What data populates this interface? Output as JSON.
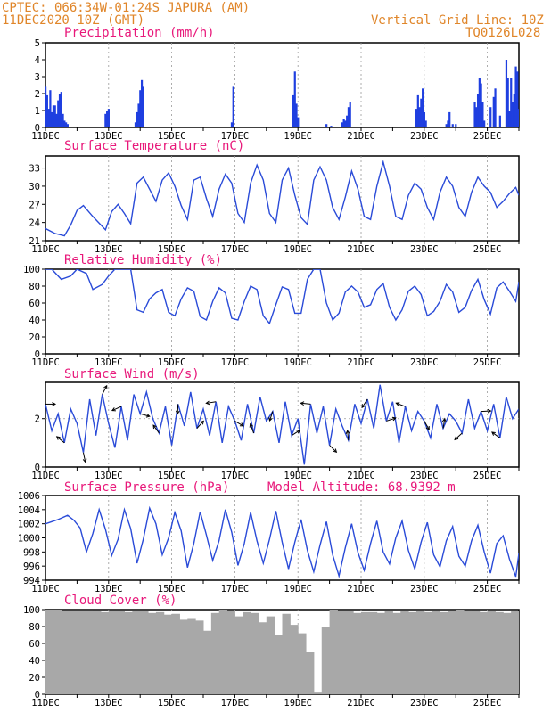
{
  "header": {
    "station": "CPTEC:   066:34W-01:24S  JAPURA (AM)",
    "date": "11DEC2020 10Z (GMT)",
    "grid_note": "Vertical Grid Line: 10Z",
    "code": "TQ0126L028"
  },
  "colors": {
    "line": "#2a4bd8",
    "bar": "#1f3fe0",
    "cloud": "#a8a8a8",
    "title": "#e8187a",
    "header": "#e0862a"
  },
  "x_tick_labels": [
    "11DEC",
    "13DEC",
    "15DEC",
    "17DEC",
    "19DEC",
    "21DEC",
    "23DEC",
    "25DEC"
  ],
  "panels": {
    "precip": {
      "title": "Precipitation (mm/h)",
      "yticks": [
        "0",
        "1",
        "2",
        "3",
        "4",
        "5"
      ]
    },
    "temp": {
      "title": "Surface Temperature (nC)",
      "yticks": [
        "21",
        "24",
        "27",
        "30",
        "33"
      ]
    },
    "rh": {
      "title": "Relative Humidity (%)",
      "yticks": [
        "0",
        "20",
        "40",
        "60",
        "80",
        "100"
      ]
    },
    "wind": {
      "title": "Surface Wind (m/s)",
      "yticks": [
        "0",
        "2"
      ]
    },
    "press": {
      "title": "Surface Pressure (hPa)",
      "extra": "Model Altitude: 68.9392 m",
      "yticks": [
        "994",
        "996",
        "998",
        "1000",
        "1002",
        "1004",
        "1006"
      ]
    },
    "cloud": {
      "title": "Cloud Cover (%)",
      "yticks": [
        "0",
        "20",
        "40",
        "60",
        "80",
        "100"
      ]
    }
  },
  "chart_data": [
    {
      "type": "bar",
      "title": "Precipitation (mm/h)",
      "ylim": [
        0,
        5
      ],
      "x_unit": "day of December 2020",
      "x": [
        11.0,
        11.05,
        11.1,
        11.15,
        11.2,
        11.25,
        11.3,
        11.35,
        11.4,
        11.45,
        11.5,
        11.55,
        11.6,
        11.65,
        11.7,
        12.9,
        12.95,
        13.0,
        13.85,
        13.9,
        13.95,
        14.0,
        14.05,
        14.1,
        16.9,
        16.95,
        18.85,
        18.9,
        18.95,
        19.0,
        19.9,
        20.05,
        20.4,
        20.45,
        20.5,
        20.55,
        20.6,
        20.65,
        22.75,
        22.8,
        22.85,
        22.9,
        22.95,
        23.0,
        23.05,
        23.7,
        23.75,
        23.8,
        23.9,
        24.0,
        24.6,
        24.65,
        24.7,
        24.75,
        24.8,
        24.85,
        24.9,
        25.1,
        25.2,
        25.25,
        25.4,
        25.6,
        25.65,
        25.7,
        25.75,
        25.8,
        25.85,
        25.9,
        25.95,
        26.0
      ],
      "values": [
        2.4,
        1.9,
        1.1,
        2.2,
        0.9,
        1.3,
        1.3,
        0.8,
        1.6,
        2.0,
        2.1,
        0.8,
        0.4,
        0.3,
        0.2,
        0.8,
        1.0,
        1.1,
        0.3,
        0.9,
        1.4,
        2.2,
        2.8,
        2.4,
        0.3,
        2.4,
        1.9,
        3.3,
        1.4,
        0.6,
        0.2,
        0.1,
        0.3,
        0.5,
        0.4,
        0.7,
        1.2,
        1.5,
        1.1,
        1.9,
        1.2,
        1.7,
        2.3,
        0.9,
        0.4,
        0.2,
        0.4,
        0.9,
        0.2,
        0.2,
        1.5,
        1.2,
        2.0,
        2.9,
        2.6,
        1.5,
        0.4,
        1.2,
        1.8,
        2.3,
        0.7,
        4.0,
        2.9,
        1.0,
        2.9,
        1.5,
        2.0,
        3.6,
        3.3,
        1.1
      ]
    },
    {
      "type": "line",
      "title": "Surface Temperature (nC)",
      "ylim": [
        21,
        35
      ],
      "x_unit": "day of December 2020",
      "x": [
        11.0,
        11.3,
        11.6,
        11.8,
        12.0,
        12.2,
        12.5,
        12.9,
        13.1,
        13.3,
        13.5,
        13.7,
        13.9,
        14.1,
        14.3,
        14.5,
        14.7,
        14.9,
        15.1,
        15.3,
        15.5,
        15.7,
        15.9,
        16.1,
        16.3,
        16.5,
        16.7,
        16.9,
        17.1,
        17.3,
        17.5,
        17.7,
        17.9,
        18.1,
        18.3,
        18.5,
        18.7,
        18.9,
        19.1,
        19.3,
        19.5,
        19.7,
        19.9,
        20.1,
        20.3,
        20.5,
        20.7,
        20.9,
        21.1,
        21.3,
        21.5,
        21.7,
        21.9,
        22.1,
        22.3,
        22.5,
        22.7,
        22.9,
        23.1,
        23.3,
        23.5,
        23.7,
        23.9,
        24.1,
        24.3,
        24.5,
        24.7,
        24.9,
        25.1,
        25.3,
        25.5,
        25.7,
        25.9,
        26.0
      ],
      "values": [
        23.0,
        22.2,
        21.8,
        23.6,
        26.0,
        26.8,
        25.0,
        22.8,
        25.8,
        27.0,
        25.5,
        23.8,
        30.5,
        31.5,
        29.5,
        27.5,
        31.0,
        32.2,
        30.0,
        26.8,
        24.5,
        31.0,
        31.5,
        28.0,
        25.0,
        29.5,
        32.0,
        30.5,
        25.5,
        24.0,
        30.5,
        33.5,
        31.0,
        25.5,
        24.0,
        31.0,
        33.0,
        28.5,
        24.8,
        23.7,
        31.0,
        33.2,
        31.0,
        26.5,
        24.5,
        28.2,
        32.5,
        29.5,
        25.0,
        24.5,
        30.0,
        34.0,
        30.0,
        25.0,
        24.5,
        28.5,
        30.5,
        29.5,
        26.5,
        24.5,
        29.0,
        31.5,
        30.0,
        26.5,
        25.0,
        29.0,
        31.5,
        30.0,
        29.0,
        26.5,
        27.5,
        28.8,
        29.8,
        28.5
      ]
    },
    {
      "type": "line",
      "title": "Relative Humidity (%)",
      "ylim": [
        0,
        100
      ],
      "x_unit": "day of December 2020",
      "x": [
        11.0,
        11.2,
        11.5,
        11.8,
        12.0,
        12.3,
        12.5,
        12.8,
        13.0,
        13.2,
        13.5,
        13.7,
        13.9,
        14.1,
        14.3,
        14.5,
        14.7,
        14.9,
        15.1,
        15.3,
        15.5,
        15.7,
        15.9,
        16.1,
        16.3,
        16.5,
        16.7,
        16.9,
        17.1,
        17.3,
        17.5,
        17.7,
        17.9,
        18.1,
        18.3,
        18.5,
        18.7,
        18.9,
        19.1,
        19.3,
        19.5,
        19.7,
        19.9,
        20.1,
        20.3,
        20.5,
        20.7,
        20.9,
        21.1,
        21.3,
        21.5,
        21.7,
        21.9,
        22.1,
        22.3,
        22.5,
        22.7,
        22.9,
        23.1,
        23.3,
        23.5,
        23.7,
        23.9,
        24.1,
        24.3,
        24.5,
        24.7,
        24.9,
        25.1,
        25.3,
        25.5,
        25.7,
        25.9,
        26.0
      ],
      "values": [
        100,
        100,
        88,
        92,
        100,
        95,
        76,
        82,
        92,
        100,
        100,
        100,
        52,
        49,
        65,
        72,
        76,
        49,
        45,
        65,
        78,
        74,
        44,
        40,
        62,
        78,
        72,
        42,
        40,
        62,
        80,
        76,
        45,
        36,
        58,
        79,
        76,
        48,
        48,
        88,
        100,
        100,
        60,
        40,
        48,
        73,
        80,
        73,
        55,
        58,
        76,
        83,
        55,
        40,
        52,
        74,
        80,
        70,
        45,
        50,
        62,
        82,
        73,
        49,
        55,
        75,
        88,
        64,
        47,
        78,
        85,
        74,
        62,
        85
      ]
    },
    {
      "type": "line",
      "title": "Surface Wind (m/s)",
      "ylim": [
        0,
        3.5
      ],
      "x_unit": "day of December 2020",
      "x": [
        11.0,
        11.2,
        11.4,
        11.6,
        11.8,
        12.0,
        12.2,
        12.4,
        12.6,
        12.8,
        13.0,
        13.2,
        13.4,
        13.6,
        13.8,
        14.0,
        14.2,
        14.4,
        14.6,
        14.8,
        15.0,
        15.2,
        15.4,
        15.6,
        15.8,
        16.0,
        16.2,
        16.4,
        16.6,
        16.8,
        17.0,
        17.2,
        17.4,
        17.6,
        17.8,
        18.0,
        18.2,
        18.4,
        18.6,
        18.8,
        19.0,
        19.2,
        19.4,
        19.6,
        19.8,
        20.0,
        20.2,
        20.4,
        20.6,
        20.8,
        21.0,
        21.2,
        21.4,
        21.6,
        21.8,
        22.0,
        22.2,
        22.4,
        22.6,
        22.8,
        23.0,
        23.2,
        23.4,
        23.6,
        23.8,
        24.0,
        24.2,
        24.4,
        24.6,
        24.8,
        25.0,
        25.2,
        25.4,
        25.6,
        25.8,
        26.0
      ],
      "values": [
        2.6,
        1.5,
        2.2,
        1.0,
        2.4,
        1.8,
        0.6,
        2.8,
        1.3,
        3.0,
        1.8,
        0.8,
        2.5,
        1.1,
        3.0,
        2.2,
        3.1,
        2.0,
        1.4,
        2.5,
        0.9,
        2.6,
        1.7,
        3.1,
        1.6,
        2.4,
        1.3,
        2.7,
        1.0,
        2.5,
        1.9,
        1.1,
        2.6,
        1.4,
        2.9,
        1.9,
        2.3,
        1.0,
        2.7,
        1.3,
        2.0,
        0.1,
        2.6,
        1.4,
        2.5,
        0.9,
        2.4,
        1.7,
        1.1,
        2.6,
        1.8,
        2.8,
        1.6,
        3.4,
        1.9,
        2.7,
        1.0,
        2.5,
        1.5,
        2.3,
        1.9,
        1.2,
        2.6,
        1.6,
        2.2,
        1.9,
        1.4,
        2.8,
        1.6,
        2.3,
        1.5,
        2.6,
        1.2,
        2.9,
        2.0,
        2.4
      ]
    },
    {
      "type": "line",
      "title": "Surface Pressure (hPa)",
      "ylim": [
        994,
        1006
      ],
      "x_unit": "day of December 2020",
      "x": [
        11.0,
        11.2,
        11.4,
        11.7,
        11.9,
        12.1,
        12.3,
        12.5,
        12.7,
        12.9,
        13.1,
        13.3,
        13.5,
        13.7,
        13.9,
        14.1,
        14.3,
        14.5,
        14.7,
        14.9,
        15.1,
        15.3,
        15.5,
        15.7,
        15.9,
        16.1,
        16.3,
        16.5,
        16.7,
        16.9,
        17.1,
        17.3,
        17.5,
        17.7,
        17.9,
        18.1,
        18.3,
        18.5,
        18.7,
        18.9,
        19.1,
        19.3,
        19.5,
        19.7,
        19.9,
        20.1,
        20.3,
        20.5,
        20.7,
        20.9,
        21.1,
        21.3,
        21.5,
        21.7,
        21.9,
        22.1,
        22.3,
        22.5,
        22.7,
        22.9,
        23.1,
        23.3,
        23.5,
        23.7,
        23.9,
        24.1,
        24.3,
        24.5,
        24.7,
        24.9,
        25.1,
        25.3,
        25.5,
        25.7,
        25.9,
        26.0
      ],
      "values": [
        1002.0,
        1002.3,
        1002.6,
        1003.2,
        1002.5,
        1001.4,
        998.0,
        1000.6,
        1004.0,
        1001.2,
        997.5,
        999.8,
        1004.0,
        1001.3,
        996.4,
        999.8,
        1004.2,
        1002.0,
        997.6,
        1000.0,
        1003.6,
        1001.0,
        995.8,
        999.2,
        1003.7,
        1000.4,
        996.8,
        999.6,
        1004.0,
        1000.8,
        996.1,
        999.2,
        1003.6,
        999.6,
        996.4,
        999.8,
        1003.8,
        999.4,
        995.6,
        999.4,
        1002.6,
        998.2,
        995.2,
        999.0,
        1002.3,
        997.6,
        994.6,
        998.6,
        1002.0,
        997.9,
        995.4,
        999.2,
        1002.4,
        998.0,
        996.3,
        1000.0,
        1002.4,
        998.2,
        995.6,
        999.4,
        1002.2,
        997.6,
        995.9,
        999.6,
        1001.6,
        997.4,
        996.0,
        999.6,
        1001.8,
        998.0,
        995.0,
        999.2,
        1000.3,
        997.0,
        994.5,
        997.8
      ]
    },
    {
      "type": "bar",
      "title": "Cloud Cover (%)",
      "ylim": [
        0,
        100
      ],
      "x_unit": "day of December 2020",
      "x": [
        11.0,
        11.25,
        11.5,
        11.75,
        12.0,
        12.25,
        12.5,
        12.75,
        13.0,
        13.25,
        13.5,
        13.75,
        14.0,
        14.25,
        14.5,
        14.75,
        15.0,
        15.25,
        15.5,
        15.75,
        16.0,
        16.25,
        16.5,
        16.75,
        17.0,
        17.25,
        17.5,
        17.75,
        18.0,
        18.25,
        18.5,
        18.75,
        19.0,
        19.25,
        19.5,
        19.75,
        20.0,
        20.25,
        20.5,
        20.75,
        21.0,
        21.25,
        21.5,
        21.75,
        22.0,
        22.25,
        22.5,
        22.75,
        23.0,
        23.25,
        23.5,
        23.75,
        24.0,
        24.25,
        24.5,
        24.75,
        25.0,
        25.25,
        25.5,
        25.75,
        26.0
      ],
      "values": [
        100,
        100,
        99,
        99,
        99,
        99,
        98,
        97,
        98,
        98,
        97,
        98,
        98,
        96,
        97,
        94,
        95,
        88,
        90,
        87,
        75,
        96,
        100,
        99,
        92,
        97,
        96,
        85,
        92,
        70,
        95,
        82,
        72,
        50,
        3,
        80,
        100,
        98,
        98,
        96,
        97,
        97,
        96,
        98,
        96,
        98,
        97,
        98,
        97,
        98,
        97,
        98,
        100,
        99,
        98,
        97,
        98,
        97,
        96,
        98,
        97
      ]
    }
  ]
}
